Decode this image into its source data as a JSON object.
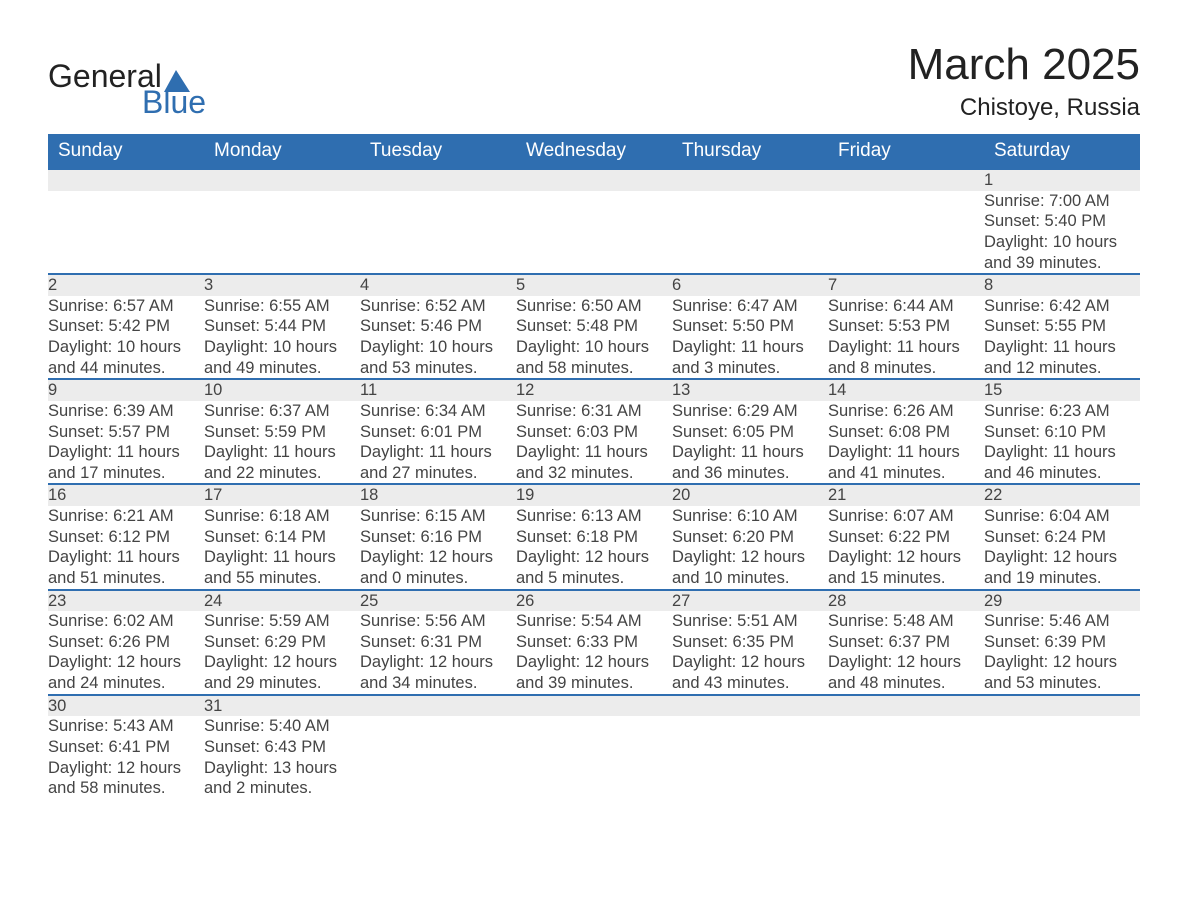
{
  "logo": {
    "word1": "General",
    "word2": "Blue",
    "sail_color": "#2f6eb0",
    "text_dark": "#222222"
  },
  "header": {
    "month_title": "March 2025",
    "location": "Chistoye, Russia"
  },
  "calendar": {
    "day_headers": [
      "Sunday",
      "Monday",
      "Tuesday",
      "Wednesday",
      "Thursday",
      "Friday",
      "Saturday"
    ],
    "header_bg": "#2f6eb0",
    "header_fg": "#ffffff",
    "daynum_bg": "#ececec",
    "daynum_border": "#2f6eb0",
    "first_day_column": 6,
    "days": [
      {
        "n": "1",
        "sunrise": "Sunrise: 7:00 AM",
        "sunset": "Sunset: 5:40 PM",
        "dl1": "Daylight: 10 hours",
        "dl2": "and 39 minutes."
      },
      {
        "n": "2",
        "sunrise": "Sunrise: 6:57 AM",
        "sunset": "Sunset: 5:42 PM",
        "dl1": "Daylight: 10 hours",
        "dl2": "and 44 minutes."
      },
      {
        "n": "3",
        "sunrise": "Sunrise: 6:55 AM",
        "sunset": "Sunset: 5:44 PM",
        "dl1": "Daylight: 10 hours",
        "dl2": "and 49 minutes."
      },
      {
        "n": "4",
        "sunrise": "Sunrise: 6:52 AM",
        "sunset": "Sunset: 5:46 PM",
        "dl1": "Daylight: 10 hours",
        "dl2": "and 53 minutes."
      },
      {
        "n": "5",
        "sunrise": "Sunrise: 6:50 AM",
        "sunset": "Sunset: 5:48 PM",
        "dl1": "Daylight: 10 hours",
        "dl2": "and 58 minutes."
      },
      {
        "n": "6",
        "sunrise": "Sunrise: 6:47 AM",
        "sunset": "Sunset: 5:50 PM",
        "dl1": "Daylight: 11 hours",
        "dl2": "and 3 minutes."
      },
      {
        "n": "7",
        "sunrise": "Sunrise: 6:44 AM",
        "sunset": "Sunset: 5:53 PM",
        "dl1": "Daylight: 11 hours",
        "dl2": "and 8 minutes."
      },
      {
        "n": "8",
        "sunrise": "Sunrise: 6:42 AM",
        "sunset": "Sunset: 5:55 PM",
        "dl1": "Daylight: 11 hours",
        "dl2": "and 12 minutes."
      },
      {
        "n": "9",
        "sunrise": "Sunrise: 6:39 AM",
        "sunset": "Sunset: 5:57 PM",
        "dl1": "Daylight: 11 hours",
        "dl2": "and 17 minutes."
      },
      {
        "n": "10",
        "sunrise": "Sunrise: 6:37 AM",
        "sunset": "Sunset: 5:59 PM",
        "dl1": "Daylight: 11 hours",
        "dl2": "and 22 minutes."
      },
      {
        "n": "11",
        "sunrise": "Sunrise: 6:34 AM",
        "sunset": "Sunset: 6:01 PM",
        "dl1": "Daylight: 11 hours",
        "dl2": "and 27 minutes."
      },
      {
        "n": "12",
        "sunrise": "Sunrise: 6:31 AM",
        "sunset": "Sunset: 6:03 PM",
        "dl1": "Daylight: 11 hours",
        "dl2": "and 32 minutes."
      },
      {
        "n": "13",
        "sunrise": "Sunrise: 6:29 AM",
        "sunset": "Sunset: 6:05 PM",
        "dl1": "Daylight: 11 hours",
        "dl2": "and 36 minutes."
      },
      {
        "n": "14",
        "sunrise": "Sunrise: 6:26 AM",
        "sunset": "Sunset: 6:08 PM",
        "dl1": "Daylight: 11 hours",
        "dl2": "and 41 minutes."
      },
      {
        "n": "15",
        "sunrise": "Sunrise: 6:23 AM",
        "sunset": "Sunset: 6:10 PM",
        "dl1": "Daylight: 11 hours",
        "dl2": "and 46 minutes."
      },
      {
        "n": "16",
        "sunrise": "Sunrise: 6:21 AM",
        "sunset": "Sunset: 6:12 PM",
        "dl1": "Daylight: 11 hours",
        "dl2": "and 51 minutes."
      },
      {
        "n": "17",
        "sunrise": "Sunrise: 6:18 AM",
        "sunset": "Sunset: 6:14 PM",
        "dl1": "Daylight: 11 hours",
        "dl2": "and 55 minutes."
      },
      {
        "n": "18",
        "sunrise": "Sunrise: 6:15 AM",
        "sunset": "Sunset: 6:16 PM",
        "dl1": "Daylight: 12 hours",
        "dl2": "and 0 minutes."
      },
      {
        "n": "19",
        "sunrise": "Sunrise: 6:13 AM",
        "sunset": "Sunset: 6:18 PM",
        "dl1": "Daylight: 12 hours",
        "dl2": "and 5 minutes."
      },
      {
        "n": "20",
        "sunrise": "Sunrise: 6:10 AM",
        "sunset": "Sunset: 6:20 PM",
        "dl1": "Daylight: 12 hours",
        "dl2": "and 10 minutes."
      },
      {
        "n": "21",
        "sunrise": "Sunrise: 6:07 AM",
        "sunset": "Sunset: 6:22 PM",
        "dl1": "Daylight: 12 hours",
        "dl2": "and 15 minutes."
      },
      {
        "n": "22",
        "sunrise": "Sunrise: 6:04 AM",
        "sunset": "Sunset: 6:24 PM",
        "dl1": "Daylight: 12 hours",
        "dl2": "and 19 minutes."
      },
      {
        "n": "23",
        "sunrise": "Sunrise: 6:02 AM",
        "sunset": "Sunset: 6:26 PM",
        "dl1": "Daylight: 12 hours",
        "dl2": "and 24 minutes."
      },
      {
        "n": "24",
        "sunrise": "Sunrise: 5:59 AM",
        "sunset": "Sunset: 6:29 PM",
        "dl1": "Daylight: 12 hours",
        "dl2": "and 29 minutes."
      },
      {
        "n": "25",
        "sunrise": "Sunrise: 5:56 AM",
        "sunset": "Sunset: 6:31 PM",
        "dl1": "Daylight: 12 hours",
        "dl2": "and 34 minutes."
      },
      {
        "n": "26",
        "sunrise": "Sunrise: 5:54 AM",
        "sunset": "Sunset: 6:33 PM",
        "dl1": "Daylight: 12 hours",
        "dl2": "and 39 minutes."
      },
      {
        "n": "27",
        "sunrise": "Sunrise: 5:51 AM",
        "sunset": "Sunset: 6:35 PM",
        "dl1": "Daylight: 12 hours",
        "dl2": "and 43 minutes."
      },
      {
        "n": "28",
        "sunrise": "Sunrise: 5:48 AM",
        "sunset": "Sunset: 6:37 PM",
        "dl1": "Daylight: 12 hours",
        "dl2": "and 48 minutes."
      },
      {
        "n": "29",
        "sunrise": "Sunrise: 5:46 AM",
        "sunset": "Sunset: 6:39 PM",
        "dl1": "Daylight: 12 hours",
        "dl2": "and 53 minutes."
      },
      {
        "n": "30",
        "sunrise": "Sunrise: 5:43 AM",
        "sunset": "Sunset: 6:41 PM",
        "dl1": "Daylight: 12 hours",
        "dl2": "and 58 minutes."
      },
      {
        "n": "31",
        "sunrise": "Sunrise: 5:40 AM",
        "sunset": "Sunset: 6:43 PM",
        "dl1": "Daylight: 13 hours",
        "dl2": "and 2 minutes."
      }
    ]
  }
}
